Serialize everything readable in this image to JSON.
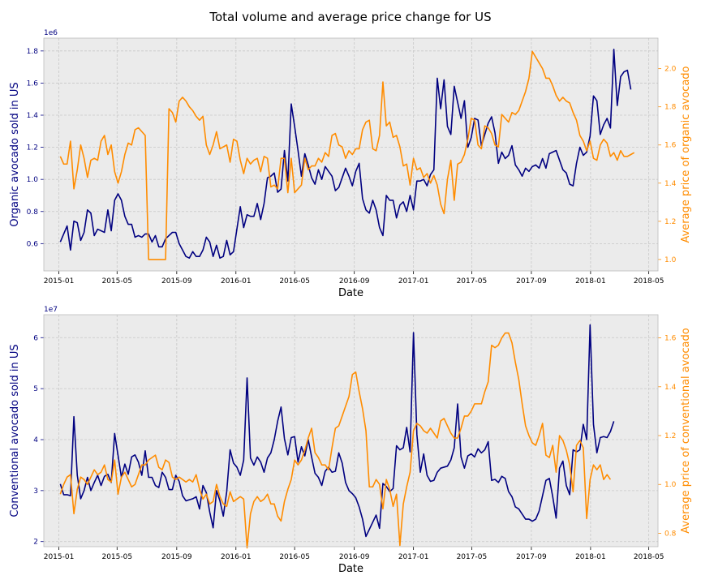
{
  "title": "Total volume and average price change for US",
  "colors": {
    "volume": "#000080",
    "price": "#FF8C00",
    "axes_bg": "#EBEBEB",
    "grid": "#C8C8C8"
  },
  "x_ticks": [
    "2015-01",
    "2015-05",
    "2015-09",
    "2016-01",
    "2016-05",
    "2016-09",
    "2017-01",
    "2017-05",
    "2017-09",
    "2018-01",
    "2018-05"
  ],
  "x_range": [
    "2014-12-01",
    "2018-05-20"
  ],
  "chart_data": [
    {
      "type": "line",
      "xlabel": "Date",
      "ylabel": "Organic avocado sold in US",
      "y2label": "Average price of organic avocado",
      "y_offset_label": "1e6",
      "ylim": [
        430000,
        1880000
      ],
      "y2lim": [
        0.94,
        2.16
      ],
      "yticks": [
        0.6,
        0.8,
        1.0,
        1.2,
        1.4,
        1.6,
        1.8
      ],
      "y2ticks": [
        1.0,
        1.2,
        1.4,
        1.6,
        1.8,
        2.0
      ],
      "grid": true,
      "series": [
        {
          "axis": "left",
          "x_start": "2015-01-04",
          "step_days": 7,
          "values": [
            610000,
            660000,
            710000,
            560000,
            740000,
            730000,
            620000,
            670000,
            810000,
            790000,
            650000,
            690000,
            680000,
            670000,
            810000,
            680000,
            870000,
            910000,
            870000,
            770000,
            720000,
            720000,
            640000,
            650000,
            640000,
            660000,
            660000,
            610000,
            650000,
            580000,
            580000,
            630000,
            650000,
            670000,
            670000,
            600000,
            560000,
            520000,
            510000,
            550000,
            520000,
            520000,
            560000,
            640000,
            610000,
            520000,
            590000,
            510000,
            520000,
            620000,
            530000,
            550000,
            690000,
            830000,
            700000,
            780000,
            770000,
            770000,
            850000,
            750000,
            850000,
            1010000,
            1020000,
            1040000,
            920000,
            940000,
            1180000,
            990000,
            1470000,
            1330000,
            1180000,
            1020000,
            1160000,
            1090000,
            1010000,
            970000,
            1060000,
            1000000,
            1080000,
            1050000,
            1020000,
            930000,
            950000,
            1010000,
            1070000,
            1020000,
            960000,
            1050000,
            1100000,
            880000,
            810000,
            790000,
            870000,
            810000,
            700000,
            650000,
            900000,
            870000,
            870000,
            760000,
            840000,
            860000,
            800000,
            900000,
            810000,
            990000,
            990000,
            1000000,
            960000,
            1030000,
            1060000,
            1630000,
            1440000,
            1620000,
            1330000,
            1280000,
            1580000,
            1480000,
            1380000,
            1490000,
            1200000,
            1260000,
            1380000,
            1370000,
            1210000,
            1280000,
            1350000,
            1390000,
            1290000,
            1100000,
            1170000,
            1130000,
            1150000,
            1210000,
            1090000,
            1060000,
            1020000,
            1070000,
            1050000,
            1080000,
            1090000,
            1070000,
            1130000,
            1070000,
            1160000,
            1170000,
            1180000,
            1120000,
            1060000,
            1040000,
            970000,
            960000,
            1100000,
            1200000,
            1150000,
            1170000,
            1270000,
            1520000,
            1490000,
            1280000,
            1340000,
            1380000,
            1320000,
            1810000,
            1460000,
            1640000,
            1670000,
            1680000,
            1560000
          ]
        },
        {
          "axis": "right",
          "x_start": "2015-01-04",
          "step_days": 7,
          "values": [
            1.54,
            1.5,
            1.5,
            1.62,
            1.37,
            1.47,
            1.6,
            1.53,
            1.43,
            1.52,
            1.53,
            1.52,
            1.62,
            1.65,
            1.55,
            1.6,
            1.46,
            1.4,
            1.46,
            1.55,
            1.61,
            1.6,
            1.68,
            1.69,
            1.67,
            1.65,
            1.0,
            1.0,
            1.0,
            1.0,
            1.0,
            1.0,
            1.79,
            1.77,
            1.72,
            1.83,
            1.85,
            1.83,
            1.8,
            1.78,
            1.75,
            1.73,
            1.75,
            1.6,
            1.55,
            1.6,
            1.67,
            1.58,
            1.59,
            1.6,
            1.51,
            1.63,
            1.62,
            1.52,
            1.45,
            1.53,
            1.5,
            1.52,
            1.53,
            1.46,
            1.54,
            1.53,
            1.38,
            1.39,
            1.37,
            1.53,
            1.53,
            1.35,
            1.53,
            1.35,
            1.37,
            1.39,
            1.53,
            1.47,
            1.49,
            1.49,
            1.53,
            1.51,
            1.56,
            1.54,
            1.65,
            1.66,
            1.6,
            1.59,
            1.53,
            1.57,
            1.55,
            1.58,
            1.58,
            1.68,
            1.72,
            1.73,
            1.58,
            1.57,
            1.65,
            1.93,
            1.7,
            1.72,
            1.64,
            1.65,
            1.59,
            1.49,
            1.5,
            1.39,
            1.53,
            1.47,
            1.48,
            1.43,
            1.45,
            1.4,
            1.44,
            1.39,
            1.29,
            1.24,
            1.42,
            1.52,
            1.31,
            1.5,
            1.51,
            1.55,
            1.63,
            1.74,
            1.73,
            1.6,
            1.58,
            1.7,
            1.69,
            1.66,
            1.6,
            1.59,
            1.76,
            1.74,
            1.72,
            1.77,
            1.76,
            1.78,
            1.83,
            1.88,
            1.95,
            2.09,
            2.06,
            2.03,
            2.0,
            1.95,
            1.95,
            1.91,
            1.86,
            1.83,
            1.85,
            1.83,
            1.82,
            1.77,
            1.73,
            1.65,
            1.62,
            1.57,
            1.62,
            1.53,
            1.52,
            1.6,
            1.63,
            1.61,
            1.54,
            1.56,
            1.52,
            1.57,
            1.54,
            1.54,
            1.55,
            1.56
          ]
        }
      ]
    },
    {
      "type": "line",
      "xlabel": "Date",
      "ylabel": "Conventional avocado sold in US",
      "y2label": "Average price of conventional avocado",
      "y_offset_label": "1e7",
      "ylim": [
        19000000,
        64500000
      ],
      "y2lim": [
        0.745,
        1.695
      ],
      "yticks": [
        2,
        3,
        4,
        5,
        6
      ],
      "y2ticks": [
        0.8,
        1.0,
        1.2,
        1.4,
        1.6
      ],
      "grid": true,
      "series": [
        {
          "axis": "left",
          "x_start": "2015-01-04",
          "step_days": 7,
          "values": [
            31300000,
            29200000,
            29200000,
            29000000,
            44500000,
            33000000,
            28400000,
            30000000,
            32600000,
            30000000,
            31600000,
            33000000,
            31000000,
            32800000,
            33200000,
            31600000,
            41200000,
            36900000,
            32600000,
            35200000,
            33200000,
            36600000,
            37000000,
            35600000,
            33000000,
            37800000,
            32600000,
            32600000,
            31000000,
            30600000,
            33600000,
            32600000,
            30200000,
            30200000,
            33000000,
            31800000,
            29000000,
            28000000,
            28200000,
            28400000,
            28800000,
            26400000,
            31000000,
            29600000,
            25800000,
            22700000,
            30000000,
            28000000,
            25000000,
            29800000,
            38000000,
            35400000,
            34600000,
            33000000,
            36000000,
            52100000,
            36400000,
            35000000,
            36600000,
            35600000,
            33600000,
            36400000,
            37400000,
            40000000,
            43600000,
            46400000,
            40200000,
            37000000,
            40400000,
            40600000,
            35600000,
            38600000,
            36800000,
            40000000,
            36600000,
            33400000,
            32600000,
            31000000,
            33800000,
            34600000,
            33600000,
            33800000,
            37400000,
            35400000,
            31600000,
            30000000,
            29400000,
            28600000,
            26800000,
            24400000,
            21000000,
            22400000,
            23800000,
            25200000,
            22600000,
            31400000,
            30800000,
            29800000,
            30400000,
            38800000,
            38000000,
            38400000,
            42400000,
            37600000,
            61000000,
            41000000,
            33600000,
            37200000,
            33000000,
            31800000,
            32000000,
            33600000,
            34400000,
            34600000,
            34800000,
            36000000,
            38400000,
            47000000,
            36600000,
            34400000,
            36800000,
            37200000,
            36600000,
            38200000,
            37400000,
            38000000,
            39600000,
            32000000,
            32200000,
            31600000,
            32800000,
            32400000,
            29800000,
            28800000,
            26800000,
            26400000,
            25400000,
            24400000,
            24400000,
            24000000,
            24400000,
            26000000,
            29000000,
            32000000,
            32400000,
            28800000,
            24600000,
            34400000,
            35800000,
            31000000,
            29200000,
            38000000,
            37600000,
            38000000,
            43000000,
            40000000,
            62500000,
            43000000,
            37400000,
            40400000,
            40600000,
            40400000,
            41600000,
            43600000
          ]
        },
        {
          "axis": "right",
          "x_start": "2015-01-04",
          "step_days": 7,
          "values": [
            0.96,
            1.0,
            1.03,
            1.04,
            0.88,
            0.98,
            1.03,
            1.02,
            1.0,
            1.03,
            1.06,
            1.04,
            1.05,
            1.08,
            1.02,
            1.01,
            1.1,
            0.96,
            1.03,
            1.05,
            1.02,
            0.99,
            1.0,
            1.04,
            1.08,
            1.08,
            1.1,
            1.11,
            1.12,
            1.07,
            1.06,
            1.1,
            1.09,
            1.03,
            1.02,
            1.03,
            1.02,
            1.01,
            1.02,
            1.01,
            1.04,
            0.98,
            0.94,
            0.96,
            0.92,
            0.93,
            1.0,
            0.95,
            0.92,
            0.91,
            0.97,
            0.93,
            0.94,
            0.95,
            0.94,
            0.74,
            0.88,
            0.93,
            0.95,
            0.93,
            0.94,
            0.96,
            0.92,
            0.92,
            0.87,
            0.85,
            0.93,
            0.98,
            1.02,
            1.1,
            1.08,
            1.1,
            1.14,
            1.19,
            1.23,
            1.13,
            1.11,
            1.08,
            1.08,
            1.06,
            1.15,
            1.23,
            1.24,
            1.28,
            1.32,
            1.36,
            1.45,
            1.46,
            1.38,
            1.31,
            1.22,
            0.99,
            0.99,
            1.02,
            1.0,
            0.9,
            1.02,
            0.98,
            0.91,
            0.96,
            0.75,
            0.92,
            0.99,
            1.05,
            1.22,
            1.25,
            1.24,
            1.22,
            1.21,
            1.23,
            1.21,
            1.19,
            1.26,
            1.27,
            1.24,
            1.21,
            1.19,
            1.19,
            1.23,
            1.28,
            1.28,
            1.3,
            1.33,
            1.33,
            1.33,
            1.38,
            1.42,
            1.57,
            1.56,
            1.57,
            1.6,
            1.62,
            1.62,
            1.58,
            1.5,
            1.43,
            1.33,
            1.24,
            1.2,
            1.17,
            1.16,
            1.2,
            1.25,
            1.12,
            1.11,
            1.16,
            1.05,
            1.2,
            1.18,
            1.14,
            1.08,
            0.97,
            1.16,
            1.18,
            1.15,
            0.86,
            1.02,
            1.08,
            1.06,
            1.08,
            1.02,
            1.04,
            1.02
          ]
        }
      ]
    }
  ]
}
